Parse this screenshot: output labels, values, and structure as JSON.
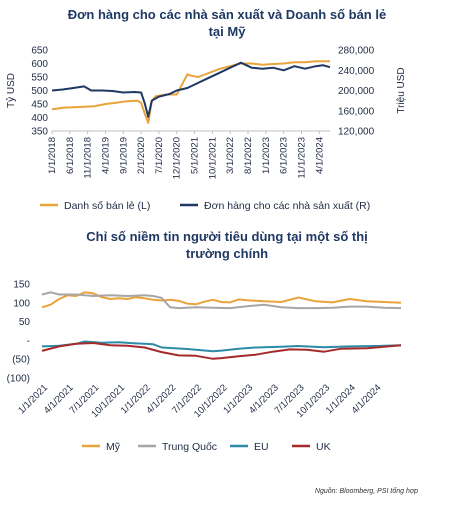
{
  "chart_data": [
    {
      "type": "line",
      "title_line1": "Đơn hàng cho các nhà sản xuất và Doanh số bán lẻ",
      "title_line2": "tại Mỹ",
      "ylabel_left": "Tỷ USD",
      "ylabel_right": "Triệu USD",
      "left_ticks": [
        "650",
        "600",
        "550",
        "500",
        "450",
        "400",
        "350"
      ],
      "left_ylim": [
        350,
        650
      ],
      "right_ticks": [
        "280,000",
        "240,000",
        "200,000",
        "160,000",
        "120,000"
      ],
      "right_ylim": [
        120000,
        280000
      ],
      "x_ticks": [
        "1/1/2018",
        "6/1/2018",
        "11/1/2018",
        "4/1/2019",
        "9/1/2019",
        "2/1/2020",
        "7/1/2020",
        "12/1/2020",
        "5/1/2021",
        "10/1/2021",
        "3/1/2022",
        "8/1/2022",
        "1/1/2023",
        "6/1/2023",
        "11/1/2023",
        "4/1/2024"
      ],
      "x_range": [
        "2018-01",
        "2024-07"
      ],
      "legend": "bottom",
      "series": [
        {
          "name": "Danh số bán lẻ (L)",
          "color": "#E8A33B",
          "axis": "left",
          "points": [
            [
              "2018-01",
              430
            ],
            [
              "2018-04",
              436
            ],
            [
              "2018-07",
              438
            ],
            [
              "2018-10",
              440
            ],
            [
              "2019-01",
              442
            ],
            [
              "2019-04",
              450
            ],
            [
              "2019-07",
              455
            ],
            [
              "2019-10",
              460
            ],
            [
              "2020-01",
              462
            ],
            [
              "2020-02",
              455
            ],
            [
              "2020-03",
              415
            ],
            [
              "2020-04",
              380
            ],
            [
              "2020-05",
              460
            ],
            [
              "2020-06",
              478
            ],
            [
              "2020-09",
              485
            ],
            [
              "2020-12",
              485
            ],
            [
              "2021-01",
              510
            ],
            [
              "2021-03",
              560
            ],
            [
              "2021-04",
              555
            ],
            [
              "2021-06",
              550
            ],
            [
              "2021-09",
              565
            ],
            [
              "2021-12",
              580
            ],
            [
              "2022-03",
              590
            ],
            [
              "2022-06",
              600
            ],
            [
              "2022-09",
              600
            ],
            [
              "2022-12",
              595
            ],
            [
              "2023-03",
              598
            ],
            [
              "2023-06",
              600
            ],
            [
              "2023-09",
              605
            ],
            [
              "2023-12",
              605
            ],
            [
              "2024-03",
              608
            ],
            [
              "2024-07",
              608
            ]
          ]
        },
        {
          "name": "Đơn hàng cho các nhà sản xuất (R)",
          "color": "#1F3864",
          "axis": "right",
          "points": [
            [
              "2018-01",
              200000
            ],
            [
              "2018-04",
              202000
            ],
            [
              "2018-07",
              205000
            ],
            [
              "2018-10",
              208000
            ],
            [
              "2018-12",
              200000
            ],
            [
              "2019-03",
              200000
            ],
            [
              "2019-06",
              199000
            ],
            [
              "2019-09",
              196000
            ],
            [
              "2019-12",
              197000
            ],
            [
              "2020-02",
              196000
            ],
            [
              "2020-03",
              175000
            ],
            [
              "2020-04",
              148000
            ],
            [
              "2020-05",
              180000
            ],
            [
              "2020-07",
              188000
            ],
            [
              "2020-10",
              193000
            ],
            [
              "2020-12",
              200000
            ],
            [
              "2021-03",
              205000
            ],
            [
              "2021-06",
              215000
            ],
            [
              "2021-09",
              225000
            ],
            [
              "2021-12",
              235000
            ],
            [
              "2022-03",
              245000
            ],
            [
              "2022-06",
              255000
            ],
            [
              "2022-09",
              245000
            ],
            [
              "2022-12",
              243000
            ],
            [
              "2023-03",
              245000
            ],
            [
              "2023-06",
              240000
            ],
            [
              "2023-09",
              248000
            ],
            [
              "2023-12",
              243000
            ],
            [
              "2024-03",
              248000
            ],
            [
              "2024-05",
              250000
            ],
            [
              "2024-07",
              246000
            ]
          ]
        }
      ]
    },
    {
      "type": "line",
      "title_line1": "Chỉ số niềm tin người tiêu dùng tại một số thị",
      "title_line2": "trường chính",
      "y_ticks": [
        "150",
        "100",
        "50",
        "-",
        "(50)",
        "(100)"
      ],
      "ylim": [
        -100,
        150
      ],
      "x_ticks": [
        "1/1/2021",
        "4/1/2021",
        "7/1/2021",
        "10/1/2021",
        "1/1/2022",
        "4/1/2022",
        "7/1/2022",
        "10/1/2022",
        "1/1/2023",
        "4/1/2023",
        "7/1/2023",
        "10/1/2023",
        "1/1/2024",
        "4/1/2024"
      ],
      "x_range": [
        "2021-01",
        "2024-07"
      ],
      "legend": "bottom",
      "series": [
        {
          "name": "Mỹ",
          "color": "#E8A33B",
          "points": [
            [
              "2021-01",
              88
            ],
            [
              "2021-02",
              95
            ],
            [
              "2021-03",
              110
            ],
            [
              "2021-04",
              120
            ],
            [
              "2021-05",
              118
            ],
            [
              "2021-06",
              128
            ],
            [
              "2021-07",
              125
            ],
            [
              "2021-08",
              115
            ],
            [
              "2021-09",
              110
            ],
            [
              "2021-10",
              112
            ],
            [
              "2021-11",
              110
            ],
            [
              "2021-12",
              115
            ],
            [
              "2022-01",
              112
            ],
            [
              "2022-02",
              108
            ],
            [
              "2022-03",
              106
            ],
            [
              "2022-04",
              108
            ],
            [
              "2022-05",
              105
            ],
            [
              "2022-06",
              98
            ],
            [
              "2022-07",
              96
            ],
            [
              "2022-08",
              103
            ],
            [
              "2022-09",
              108
            ],
            [
              "2022-10",
              102
            ],
            [
              "2022-11",
              101
            ],
            [
              "2022-12",
              109
            ],
            [
              "2023-01",
              107
            ],
            [
              "2023-03",
              104
            ],
            [
              "2023-05",
              102
            ],
            [
              "2023-07",
              114
            ],
            [
              "2023-09",
              104
            ],
            [
              "2023-11",
              101
            ],
            [
              "2024-01",
              110
            ],
            [
              "2024-03",
              104
            ],
            [
              "2024-05",
              102
            ],
            [
              "2024-07",
              100
            ]
          ]
        },
        {
          "name": "Trung Quốc",
          "color": "#A6A6A6",
          "points": [
            [
              "2021-01",
              122
            ],
            [
              "2021-02",
              128
            ],
            [
              "2021-03",
              122
            ],
            [
              "2021-05",
              122
            ],
            [
              "2021-07",
              118
            ],
            [
              "2021-09",
              120
            ],
            [
              "2021-11",
              118
            ],
            [
              "2022-01",
              120
            ],
            [
              "2022-02",
              118
            ],
            [
              "2022-03",
              113
            ],
            [
              "2022-04",
              88
            ],
            [
              "2022-05",
              86
            ],
            [
              "2022-07",
              88
            ],
            [
              "2022-09",
              87
            ],
            [
              "2022-11",
              86
            ],
            [
              "2023-01",
              91
            ],
            [
              "2023-03",
              95
            ],
            [
              "2023-05",
              88
            ],
            [
              "2023-07",
              86
            ],
            [
              "2023-09",
              86
            ],
            [
              "2023-11",
              87
            ],
            [
              "2024-01",
              90
            ],
            [
              "2024-03",
              90
            ],
            [
              "2024-05",
              87
            ],
            [
              "2024-07",
              86
            ]
          ]
        },
        {
          "name": "EU",
          "color": "#2E8BA8",
          "points": [
            [
              "2021-01",
              -16
            ],
            [
              "2021-03",
              -14
            ],
            [
              "2021-05",
              -9
            ],
            [
              "2021-06",
              -3
            ],
            [
              "2021-08",
              -6
            ],
            [
              "2021-10",
              -5
            ],
            [
              "2021-12",
              -8
            ],
            [
              "2022-01",
              -9
            ],
            [
              "2022-02",
              -10
            ],
            [
              "2022-03",
              -19
            ],
            [
              "2022-06",
              -23
            ],
            [
              "2022-09",
              -29
            ],
            [
              "2022-10",
              -27
            ],
            [
              "2022-12",
              -22
            ],
            [
              "2023-02",
              -19
            ],
            [
              "2023-05",
              -17
            ],
            [
              "2023-07",
              -15
            ],
            [
              "2023-10",
              -18
            ],
            [
              "2024-01",
              -16
            ],
            [
              "2024-04",
              -15
            ],
            [
              "2024-07",
              -13
            ]
          ]
        },
        {
          "name": "UK",
          "color": "#A52A2A",
          "points": [
            [
              "2021-01",
              -28
            ],
            [
              "2021-03",
              -16
            ],
            [
              "2021-05",
              -9
            ],
            [
              "2021-07",
              -7
            ],
            [
              "2021-09",
              -13
            ],
            [
              "2021-11",
              -14
            ],
            [
              "2022-01",
              -19
            ],
            [
              "2022-03",
              -31
            ],
            [
              "2022-05",
              -40
            ],
            [
              "2022-07",
              -41
            ],
            [
              "2022-09",
              -49
            ],
            [
              "2022-10",
              -47
            ],
            [
              "2022-12",
              -42
            ],
            [
              "2023-02",
              -38
            ],
            [
              "2023-04",
              -30
            ],
            [
              "2023-06",
              -24
            ],
            [
              "2023-08",
              -25
            ],
            [
              "2023-10",
              -30
            ],
            [
              "2023-12",
              -22
            ],
            [
              "2024-03",
              -21
            ],
            [
              "2024-05",
              -17
            ],
            [
              "2024-07",
              -13
            ]
          ]
        }
      ]
    }
  ],
  "source": "Nguồn: Bloomberg, PSI tổng hợp"
}
